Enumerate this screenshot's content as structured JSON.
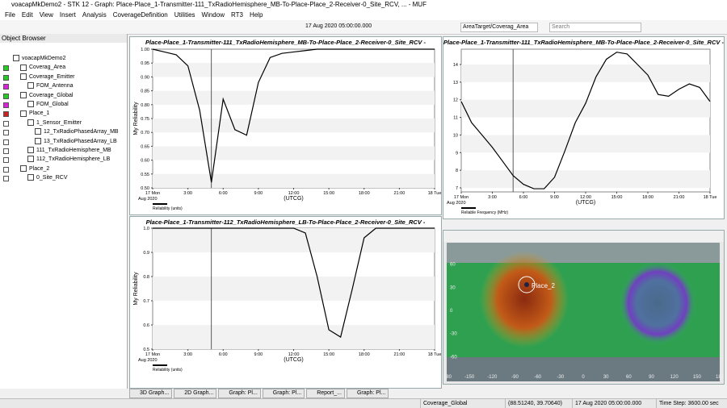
{
  "window": {
    "title": "voacapMkDemo2 - STK 12 - Graph: Place-Place_1-Transmitter-111_TxRadioHemisphere_MB-To-Place-Place_2-Receiver-0_Site_RCV, ... - MUF"
  },
  "menu": [
    "File",
    "Edit",
    "View",
    "Insert",
    "Analysis",
    "CoverageDefinition",
    "Utilities",
    "Window",
    "RT3",
    "Help"
  ],
  "toolbar": {
    "time": "17 Aug 2020 05:00:00.000",
    "object": "AreaTarget/Coverag_Area",
    "search": "Search"
  },
  "object_browser": {
    "title": "Object Browser",
    "items": [
      "voacapMkDemo2",
      "Coverag_Area",
      "Coverage_Emitter",
      "FOM_Antenna",
      "Coverage_Global",
      "FOM_Global",
      "Place_1",
      "1_Sensor_Emitter",
      "12_TxRadioPhasedArray_MB",
      "13_TxRadioPhasedArray_LB",
      "111_TxRadioHemisphere_MB",
      "112_TxRadioHemisphere_LB",
      "Place_2",
      "0_Site_RCV"
    ]
  },
  "graphs": [
    {
      "type": "line",
      "title": "Place-Place_1-Transmitter-111_TxRadioHemisphere_MB-To-Place-Place_2-Receiver-0_Site_RCV -",
      "y_label": "My Reliability",
      "x_label": "(UTCG)",
      "x_sublabel": "Aug 2020",
      "legend": "Reliability (units)",
      "x": [
        0,
        1,
        2,
        3,
        4,
        5,
        6,
        7,
        8,
        9,
        10,
        11,
        12,
        13,
        14,
        15,
        16,
        17,
        18,
        19,
        20,
        21,
        22,
        23,
        24
      ],
      "values": [
        1.0,
        0.99,
        0.98,
        0.94,
        0.78,
        0.52,
        0.82,
        0.71,
        0.69,
        0.88,
        0.97,
        0.985,
        0.99,
        0.995,
        1.0,
        1.0,
        1.0,
        1.0,
        1.0,
        1.0,
        1.0,
        1.0,
        1.0,
        1.0,
        1.0
      ],
      "cursor": 5,
      "xlim": [
        0,
        24
      ],
      "ylim": [
        0.5,
        1.0
      ],
      "xticks": [
        {
          "value": 0,
          "label": "17 Mon"
        },
        {
          "value": 3,
          "label": "3:00"
        },
        {
          "value": 6,
          "label": "6:00"
        },
        {
          "value": 9,
          "label": "9:00"
        },
        {
          "value": 12,
          "label": "12:00"
        },
        {
          "value": 15,
          "label": "15:00"
        },
        {
          "value": 18,
          "label": "18:00"
        },
        {
          "value": 21,
          "label": "21:00"
        },
        {
          "value": 24,
          "label": "18 Tue"
        }
      ],
      "yticks": [
        {
          "value": 0.5,
          "label": "0.50"
        },
        {
          "value": 0.55,
          "label": "0.55"
        },
        {
          "value": 0.6,
          "label": "0.60"
        },
        {
          "value": 0.65,
          "label": "0.65"
        },
        {
          "value": 0.7,
          "label": "0.70"
        },
        {
          "value": 0.75,
          "label": "0.75"
        },
        {
          "value": 0.8,
          "label": "0.80"
        },
        {
          "value": 0.85,
          "label": "0.85"
        },
        {
          "value": 0.9,
          "label": "0.90"
        },
        {
          "value": 0.95,
          "label": "0.95"
        },
        {
          "value": 1.0,
          "label": "1.00"
        }
      ]
    },
    {
      "type": "line",
      "title": "Place-Place_1-Transmitter-111_TxRadioHemisphere_MB-To-Place-Place_2-Receiver-0_Site_RCV -",
      "x_label": "(UTCG)",
      "x_sublabel": "Aug 2020",
      "legend": "Reliable Frequency (MHz)",
      "x": [
        0,
        1,
        2,
        3,
        4,
        5,
        6,
        7,
        8,
        9,
        10,
        11,
        12,
        13,
        14,
        15,
        16,
        17,
        18,
        19,
        20,
        21,
        22,
        23,
        24
      ],
      "values": [
        11.9,
        10.7,
        10.0,
        9.3,
        8.5,
        7.7,
        7.2,
        6.95,
        6.95,
        7.6,
        9.1,
        10.7,
        11.8,
        13.3,
        14.3,
        14.7,
        14.6,
        14.0,
        13.4,
        12.3,
        12.2,
        12.6,
        12.9,
        12.7,
        11.9
      ],
      "cursor": 5,
      "xlim": [
        0,
        24
      ],
      "ylim": [
        6.77,
        14.87
      ],
      "xticks": [
        {
          "value": 0,
          "label": "17 Mon"
        },
        {
          "value": 3,
          "label": "3:00"
        },
        {
          "value": 6,
          "label": "6:00"
        },
        {
          "value": 9,
          "label": "9:00"
        },
        {
          "value": 12,
          "label": "12:00"
        },
        {
          "value": 15,
          "label": "15:00"
        },
        {
          "value": 18,
          "label": "18:00"
        },
        {
          "value": 21,
          "label": "21:00"
        },
        {
          "value": 24,
          "label": "18 Tue"
        }
      ],
      "yticks": [
        7,
        8,
        9,
        10,
        11,
        12,
        13,
        14
      ]
    },
    {
      "type": "line",
      "title": "Place-Place_1-Transmitter-112_TxRadioHemisphere_LB-To-Place-Place_2-Receiver-0_Site_RCV -",
      "y_label": "My Reliability",
      "x_label": "(UTCG)",
      "x_sublabel": "Aug 2020",
      "legend": "Reliability (units)",
      "x": [
        0,
        1,
        2,
        3,
        4,
        5,
        6,
        7,
        8,
        9,
        10,
        11,
        12,
        13,
        14,
        15,
        16,
        17,
        18,
        19,
        20,
        21,
        22,
        23,
        24
      ],
      "values": [
        1.0,
        1.0,
        1.0,
        1.0,
        1.0,
        1.0,
        1.0,
        1.0,
        1.0,
        1.0,
        1.0,
        1.0,
        1.0,
        0.98,
        0.8,
        0.58,
        0.55,
        0.75,
        0.96,
        1.0,
        1.0,
        1.0,
        1.0,
        1.0,
        1.0
      ],
      "cursor": 5,
      "xlim": [
        0,
        24
      ],
      "ylim": [
        0.5,
        1.0
      ],
      "xticks": [
        {
          "value": 0,
          "label": "17 Mon"
        },
        {
          "value": 3,
          "label": "3:00"
        },
        {
          "value": 6,
          "label": "6:00"
        },
        {
          "value": 9,
          "label": "9:00"
        },
        {
          "value": 12,
          "label": "12:00"
        },
        {
          "value": 15,
          "label": "15:00"
        },
        {
          "value": 18,
          "label": "18:00"
        },
        {
          "value": 21,
          "label": "21:00"
        },
        {
          "value": 24,
          "label": "18 Tue"
        }
      ],
      "yticks": [
        0.5,
        0.6,
        0.7,
        0.8,
        0.9,
        {
          "value": 1.0,
          "label": "1.0"
        }
      ]
    }
  ],
  "map": {
    "label": "Place_2",
    "xlim": [
      -180,
      180
    ],
    "ylim": [
      -90,
      90
    ],
    "lon_ticks": [
      -180,
      -150,
      -120,
      -90,
      -60,
      -30,
      0,
      30,
      60,
      90,
      120,
      150,
      180
    ],
    "lat_ticks": [
      60,
      30,
      0,
      -30,
      -60
    ]
  },
  "tabs": [
    "3D Graph...",
    "2D Graph...",
    "Graph: Pl...",
    "Graph: Pl...",
    "Report_...",
    "Graph: Pl..."
  ],
  "status": {
    "object": "Coverage_Global",
    "position": "(88.51240, 39.70640)",
    "time": "17 Aug 2020 05:00:00.000",
    "step": "Time Step: 3600.00 sec"
  }
}
